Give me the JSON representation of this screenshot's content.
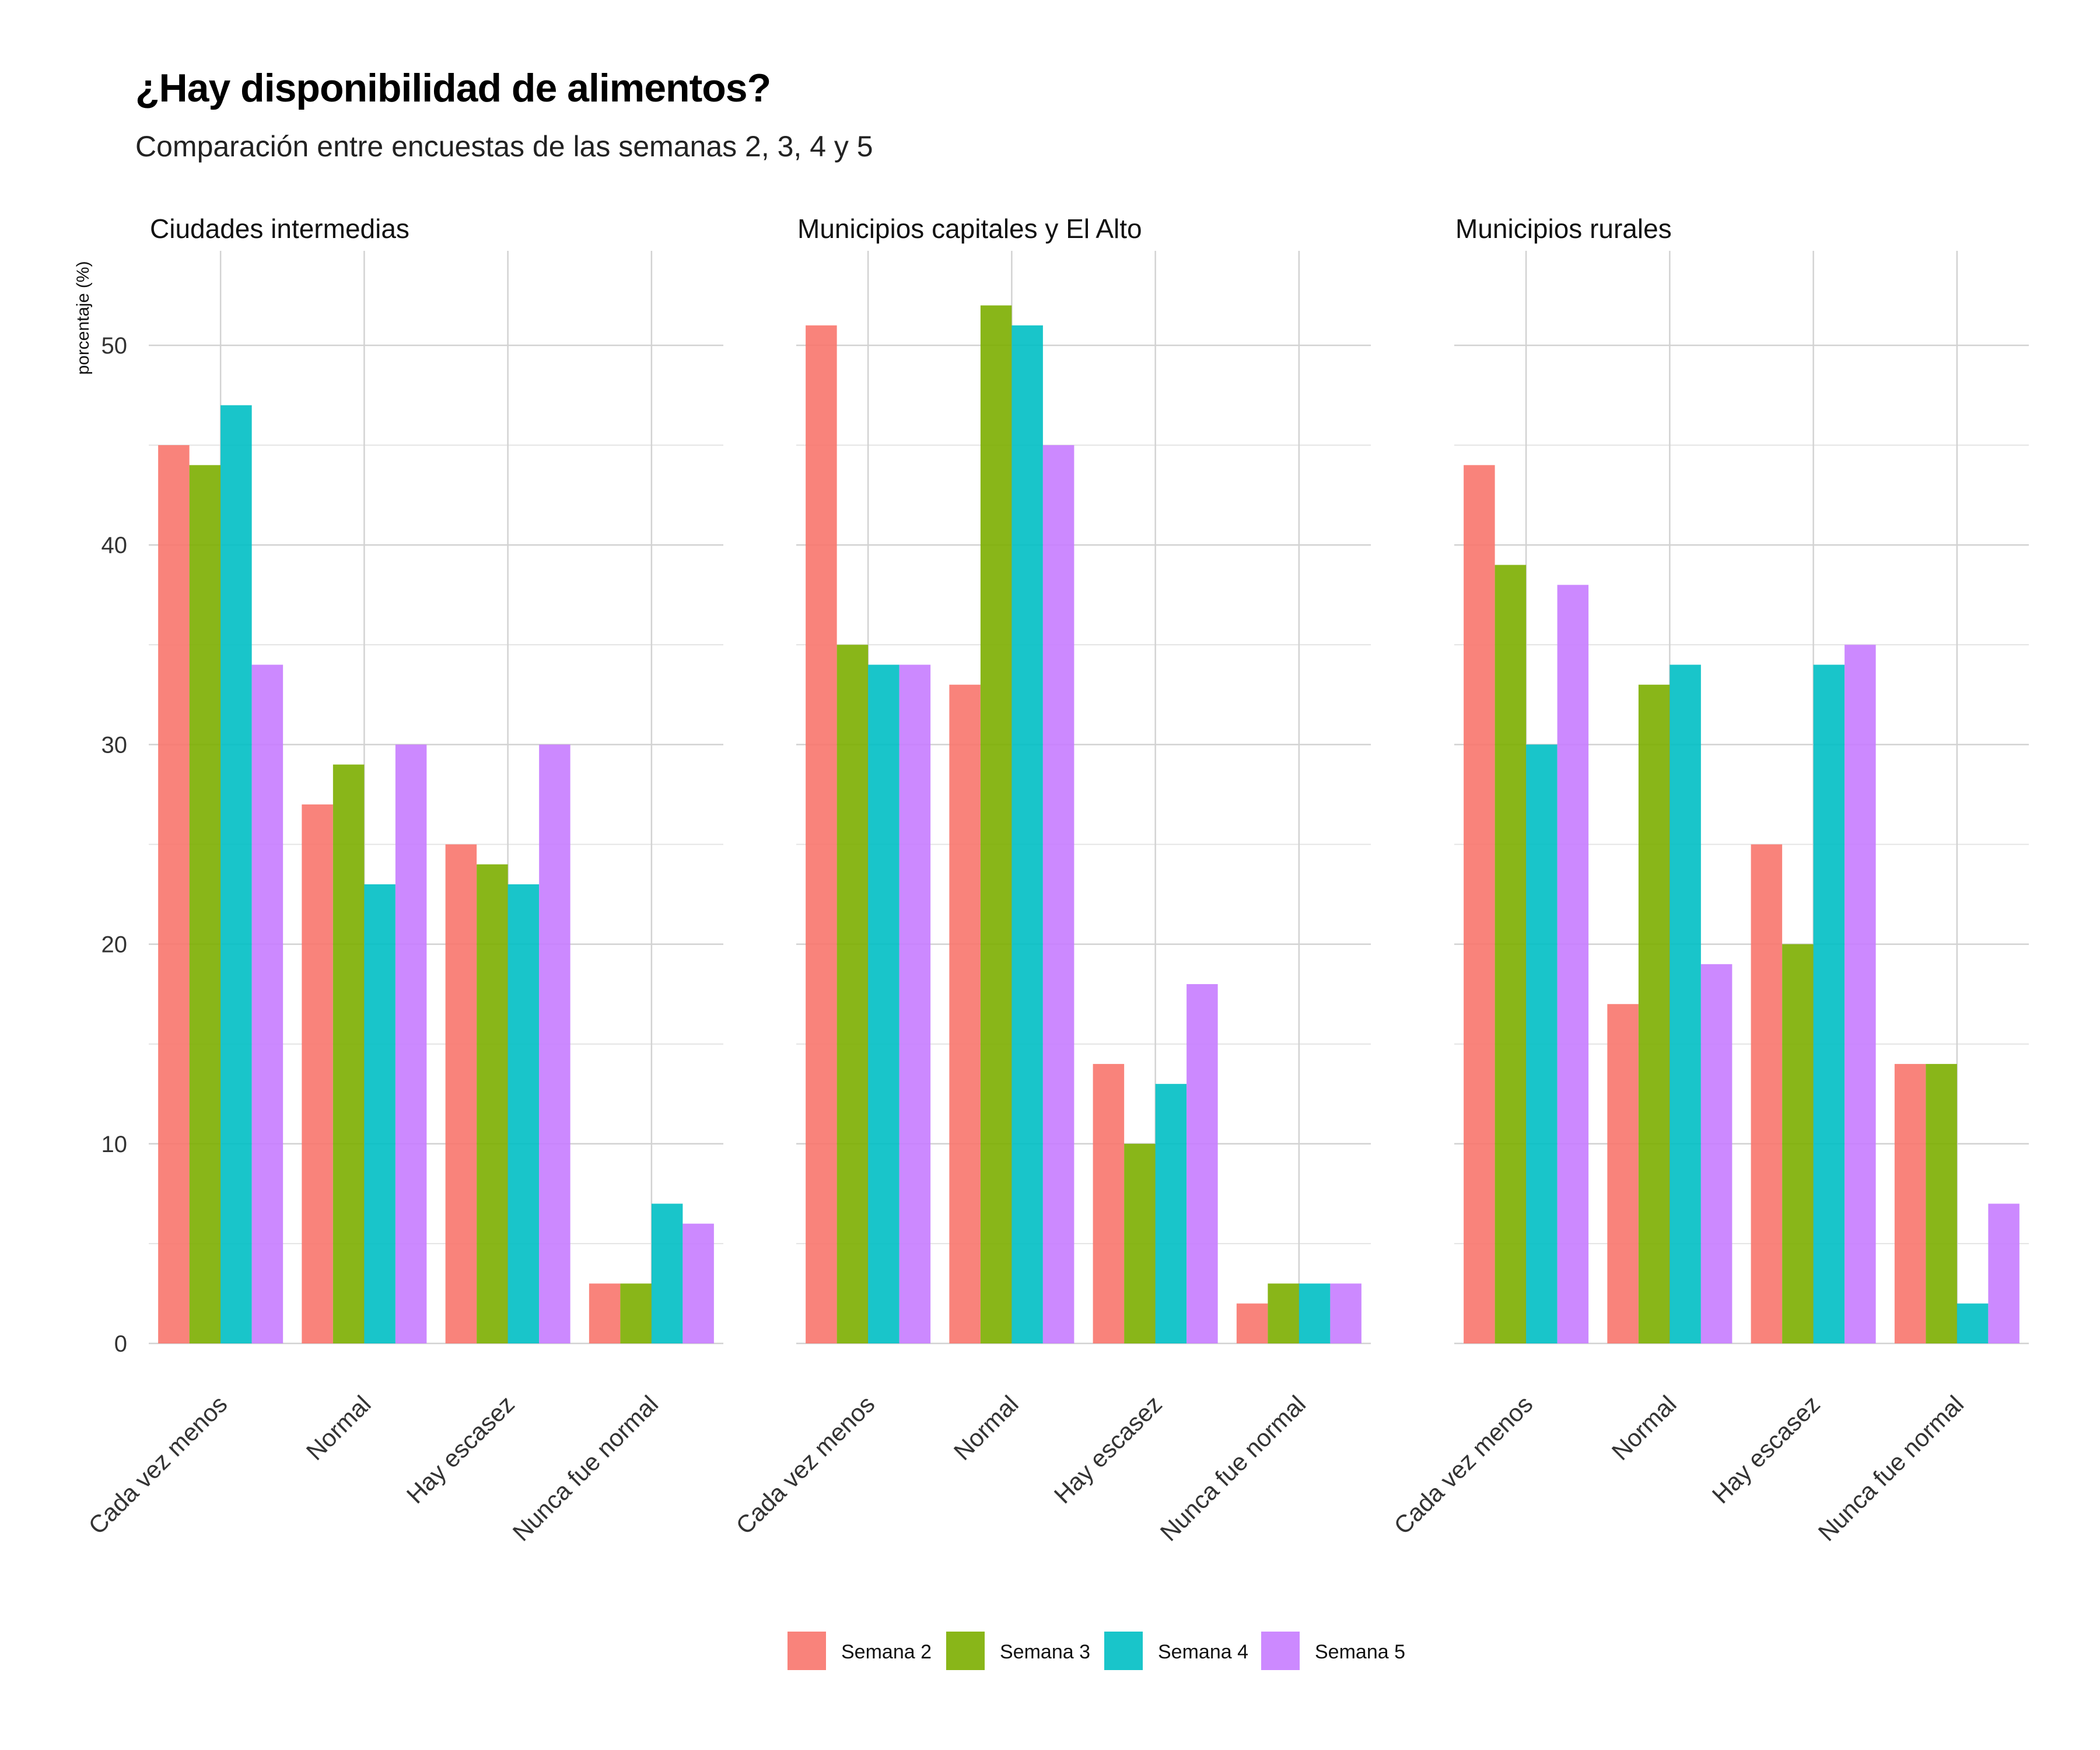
{
  "chart_data": {
    "type": "bar",
    "title": "¿Hay disponibilidad de alimentos?",
    "subtitle": "Comparación entre encuestas de las semanas 2, 3, 4 y 5",
    "ylabel": "porcentaje (%)",
    "xlabel": "",
    "ylim": [
      0,
      55
    ],
    "yticks": [
      0,
      10,
      20,
      30,
      40,
      50
    ],
    "grid": true,
    "legend_position": "bottom",
    "categories": [
      "Cada vez menos",
      "Normal",
      "Hay escasez",
      "Nunca fue normal"
    ],
    "series_names": [
      "Semana 2",
      "Semana 3",
      "Semana 4",
      "Semana 5"
    ],
    "colors": [
      "#F8766D",
      "#7CAE00",
      "#00BFC4",
      "#C77CFF"
    ],
    "facets": [
      {
        "title": "Ciudades intermedias",
        "series": [
          {
            "name": "Semana 2",
            "values": [
              45,
              27,
              25,
              3
            ]
          },
          {
            "name": "Semana 3",
            "values": [
              44,
              29,
              24,
              3
            ]
          },
          {
            "name": "Semana 4",
            "values": [
              47,
              23,
              23,
              7
            ]
          },
          {
            "name": "Semana 5",
            "values": [
              34,
              30,
              30,
              6
            ]
          }
        ]
      },
      {
        "title": "Municipios capitales y El Alto",
        "series": [
          {
            "name": "Semana 2",
            "values": [
              51,
              33,
              14,
              2
            ]
          },
          {
            "name": "Semana 3",
            "values": [
              35,
              52,
              10,
              3
            ]
          },
          {
            "name": "Semana 4",
            "values": [
              34,
              51,
              13,
              3
            ]
          },
          {
            "name": "Semana 5",
            "values": [
              34,
              45,
              18,
              3
            ]
          }
        ]
      },
      {
        "title": "Municipios rurales",
        "series": [
          {
            "name": "Semana 2",
            "values": [
              44,
              17,
              25,
              14
            ]
          },
          {
            "name": "Semana 3",
            "values": [
              39,
              33,
              20,
              14
            ]
          },
          {
            "name": "Semana 4",
            "values": [
              30,
              34,
              34,
              2
            ]
          },
          {
            "name": "Semana 5",
            "values": [
              38,
              19,
              35,
              7
            ]
          }
        ]
      }
    ]
  }
}
